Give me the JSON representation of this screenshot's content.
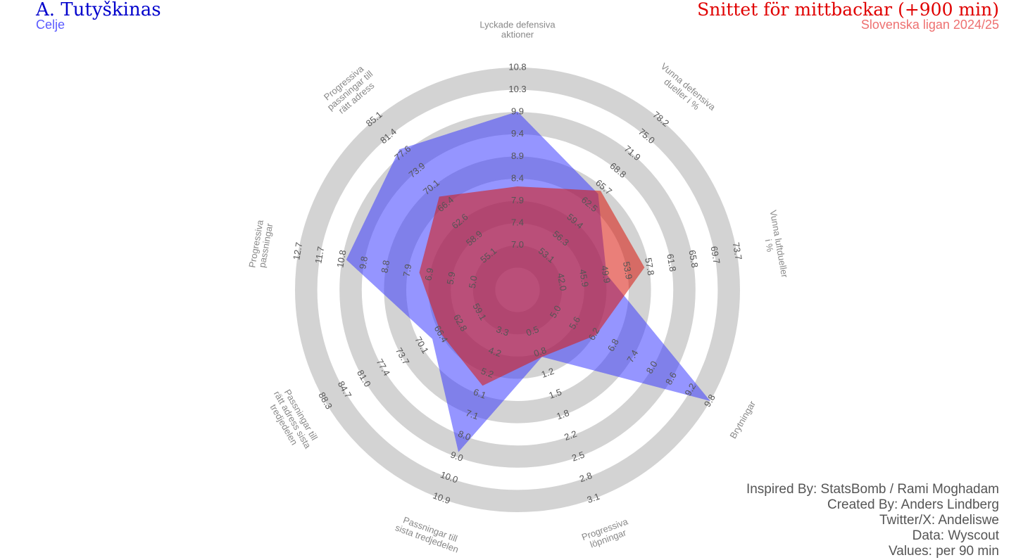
{
  "header": {
    "player": "A. Tutyškinas",
    "club": "Celje",
    "comparison": "Snittet för mittbackar (+900 min)",
    "league": "Slovenska ligan 2024/25"
  },
  "credits": [
    "Inspired By: StatsBomb / Rami Moghadam",
    "Created By: Anders Lindberg",
    "Twitter/X: Andeliswe",
    "Data: Wyscout",
    "Values: per 90 min"
  ],
  "colors": {
    "player": "#3333ff",
    "average": "#d9150b",
    "ring": "#d3d3d3",
    "label": "#888888",
    "tick": "#555555"
  },
  "chart_data": {
    "type": "radar",
    "grid": false,
    "legend": "none",
    "axes": [
      {
        "label": "Lyckade defensiva aktioner",
        "ticks": [
          "7.0",
          "7.4",
          "7.9",
          "8.4",
          "8.9",
          "9.4",
          "9.9",
          "10.3",
          "10.8"
        ],
        "range": [
          6.5,
          10.8
        ]
      },
      {
        "label": "Vunna defensiva dueller i %",
        "ticks": [
          "53.1",
          "56.3",
          "59.4",
          "62.5",
          "65.7",
          "68.8",
          "71.9",
          "75.0",
          "78.2"
        ],
        "range": [
          50.0,
          78.2
        ]
      },
      {
        "label": "Vunna luftdueller i %",
        "ticks": [
          "42.0",
          "45.9",
          "49.9",
          "53.9",
          "57.8",
          "61.8",
          "65.8",
          "69.7",
          "73.7"
        ],
        "range": [
          38.0,
          73.7
        ]
      },
      {
        "label": "Brytningar",
        "ticks": [
          "5.0",
          "5.6",
          "6.2",
          "6.8",
          "7.4",
          "8.0",
          "8.6",
          "9.2",
          "9.8"
        ],
        "range": [
          4.4,
          9.8
        ]
      },
      {
        "label": "Progressiva löpningar",
        "ticks": [
          "0.5",
          "0.8",
          "1.2",
          "1.5",
          "1.8",
          "2.2",
          "2.5",
          "2.8",
          "3.1"
        ],
        "range": [
          0.2,
          3.1
        ]
      },
      {
        "label": "Passningar till sista tredjedelen",
        "ticks": [
          "3.3",
          "4.2",
          "5.2",
          "6.1",
          "7.1",
          "8.0",
          "9.0",
          "10.0",
          "10.9"
        ],
        "range": [
          2.4,
          10.9
        ]
      },
      {
        "label": "Passningar till rätt adress sista tredjedelen",
        "ticks": [
          "59.1",
          "62.8",
          "66.4",
          "70.1",
          "73.7",
          "77.4",
          "81.0",
          "84.7",
          "88.3"
        ],
        "range": [
          55.5,
          88.3
        ]
      },
      {
        "label": "Progressiva passningar",
        "ticks": [
          "5.0",
          "5.9",
          "6.9",
          "7.9",
          "8.8",
          "9.8",
          "10.8",
          "11.7",
          "12.7"
        ],
        "range": [
          4.0,
          12.7
        ]
      },
      {
        "label": "Progressiva passningar till rätt adress",
        "ticks": [
          "55.1",
          "58.9",
          "62.6",
          "66.4",
          "70.1",
          "73.9",
          "77.6",
          "81.4",
          "85.1"
        ],
        "range": [
          51.3,
          85.1
        ]
      }
    ],
    "series": [
      {
        "name": "A. Tutyškinas",
        "values": [
          9.95,
          65.9,
          52.5,
          9.8,
          1.13,
          9.0,
          70.0,
          10.8,
          79.2
        ]
      },
      {
        "name": "Snittet för mittbackar (+900 min)",
        "values": [
          8.5,
          66.4,
          58.7,
          6.6,
          1.13,
          6.3,
          68.5,
          7.9,
          69.8
        ]
      }
    ]
  }
}
